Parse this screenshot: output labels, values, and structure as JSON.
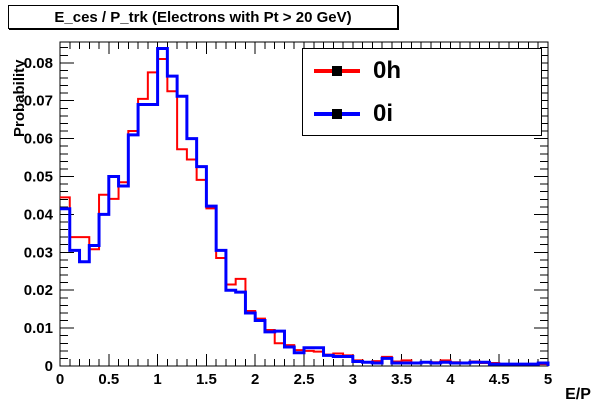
{
  "title": {
    "text": "E_ces / P_trk (Electrons with Pt > 20 GeV)"
  },
  "axes": {
    "x_title": "E/P",
    "y_title": "Probability",
    "x_tick_labels": [
      "0",
      "0.5",
      "1",
      "1.5",
      "2",
      "2.5",
      "3",
      "3.5",
      "4",
      "4.5",
      "5"
    ],
    "y_tick_labels": [
      "0",
      "0.01",
      "0.02",
      "0.03",
      "0.04",
      "0.05",
      "0.06",
      "0.07",
      "0.08"
    ]
  },
  "legend": {
    "marker": "black-square",
    "entries": [
      {
        "label": "0h",
        "color": "#ff0000"
      },
      {
        "label": "0i",
        "color": "#0000ff"
      }
    ]
  },
  "chart_data": {
    "type": "line",
    "subtype": "step-histogram",
    "title": "E_ces / P_trk (Electrons with Pt > 20 GeV)",
    "xlabel": "E/P",
    "ylabel": "Probability",
    "xlim": [
      0,
      5
    ],
    "ylim": [
      0,
      0.0855
    ],
    "grid": false,
    "legend_position": "top-right",
    "bin_width": 0.1,
    "x_bin_start": 0,
    "x_ticks": [
      0,
      0.5,
      1,
      1.5,
      2,
      2.5,
      3,
      3.5,
      4,
      4.5,
      5
    ],
    "y_ticks": [
      0,
      0.01,
      0.02,
      0.03,
      0.04,
      0.05,
      0.06,
      0.07,
      0.08
    ],
    "x_minor_step": 0.1,
    "y_minor_step": 0.002,
    "series": [
      {
        "name": "0h",
        "color": "#ff0000",
        "line_width": 2,
        "values": [
          0.0445,
          0.034,
          0.034,
          0.0308,
          0.0452,
          0.0441,
          0.0485,
          0.062,
          0.0705,
          0.0775,
          0.081,
          0.0725,
          0.0572,
          0.0545,
          0.0491,
          0.0416,
          0.0285,
          0.0215,
          0.023,
          0.0145,
          0.0125,
          0.0095,
          0.006,
          0.0055,
          0.0042,
          0.004,
          0.0038,
          0.003,
          0.0033,
          0.0028,
          0.0015,
          0.001,
          0.0013,
          0.0024,
          0.0012,
          0.0015,
          0.0008,
          0.001,
          0.001,
          0.0015,
          0.001,
          0.0008,
          0.0012,
          0.0008,
          0.0008,
          0.0005,
          0.0005,
          0.0005,
          0.0005,
          0.0005
        ]
      },
      {
        "name": "0i",
        "color": "#0000ff",
        "line_width": 3,
        "values": [
          0.0415,
          0.0305,
          0.0275,
          0.0318,
          0.04,
          0.05,
          0.0475,
          0.061,
          0.069,
          0.069,
          0.0838,
          0.0765,
          0.0712,
          0.06,
          0.0526,
          0.0422,
          0.0305,
          0.02,
          0.0195,
          0.014,
          0.012,
          0.009,
          0.0092,
          0.005,
          0.0035,
          0.0048,
          0.0048,
          0.0028,
          0.0025,
          0.0025,
          0.0012,
          0.001,
          0.0008,
          0.002,
          0.0008,
          0.0008,
          0.0008,
          0.001,
          0.0008,
          0.001,
          0.0008,
          0.0008,
          0.001,
          0.001,
          0.0005,
          0.0005,
          0.0005,
          0.0005,
          0.0005,
          0.0008
        ]
      }
    ]
  }
}
